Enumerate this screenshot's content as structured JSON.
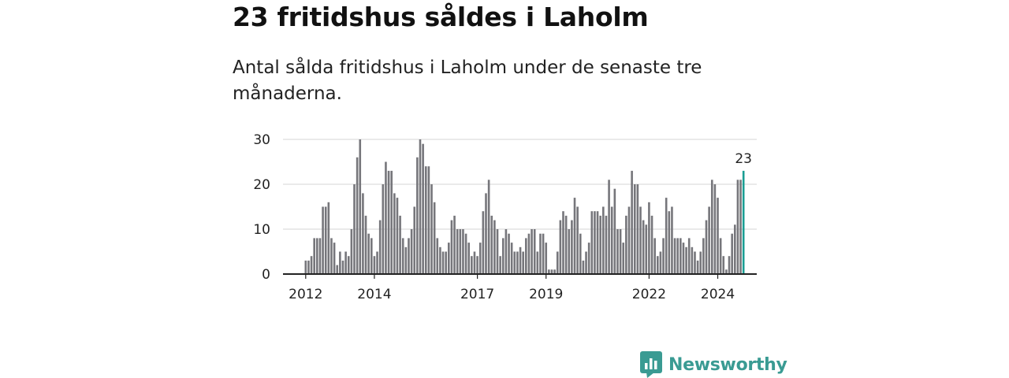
{
  "title": "23 fritidshus såldes i Laholm",
  "subtitle": "Antal sålda fritidshus i Laholm under de senaste tre månaderna.",
  "brand": {
    "name": "Newsworthy",
    "icon": "newsworthy-logo-icon"
  },
  "colors": {
    "bar": "#76767b",
    "highlight": "#1a9e93",
    "grid": "#dddddd",
    "axis": "#222222",
    "brand": "#3a9b93"
  },
  "chart_data": {
    "type": "bar",
    "title": "",
    "xlabel": "",
    "ylabel": "",
    "ylim": [
      0,
      30
    ],
    "yticks": [
      0,
      10,
      20,
      30
    ],
    "xticks": [
      {
        "label": "2012",
        "index": 0
      },
      {
        "label": "2014",
        "index": 24
      },
      {
        "label": "2017",
        "index": 60
      },
      {
        "label": "2019",
        "index": 84
      },
      {
        "label": "2022",
        "index": 120
      },
      {
        "label": "2024",
        "index": 144
      }
    ],
    "values": [
      3,
      3,
      4,
      8,
      8,
      8,
      15,
      15,
      16,
      8,
      7,
      2,
      5,
      3,
      5,
      4,
      10,
      20,
      26,
      30,
      18,
      13,
      9,
      8,
      4,
      5,
      12,
      20,
      25,
      23,
      23,
      18,
      17,
      13,
      8,
      6,
      8,
      10,
      15,
      26,
      30,
      29,
      24,
      24,
      20,
      16,
      8,
      6,
      5,
      5,
      7,
      12,
      13,
      10,
      10,
      10,
      9,
      7,
      4,
      5,
      4,
      7,
      14,
      18,
      21,
      13,
      12,
      10,
      4,
      8,
      10,
      9,
      7,
      5,
      5,
      6,
      5,
      8,
      9,
      10,
      10,
      5,
      9,
      9,
      7,
      1,
      1,
      1,
      5,
      12,
      14,
      13,
      10,
      12,
      17,
      15,
      9,
      3,
      5,
      7,
      14,
      14,
      14,
      13,
      15,
      13,
      21,
      15,
      19,
      10,
      10,
      7,
      13,
      15,
      23,
      20,
      20,
      15,
      12,
      11,
      16,
      13,
      8,
      4,
      5,
      8,
      17,
      14,
      15,
      8,
      8,
      8,
      7,
      6,
      8,
      6,
      5,
      3,
      5,
      8,
      12,
      15,
      21,
      20,
      17,
      8,
      4,
      1,
      4,
      9,
      11,
      21,
      21,
      23
    ],
    "highlight": {
      "label": "23",
      "value": 23
    }
  }
}
